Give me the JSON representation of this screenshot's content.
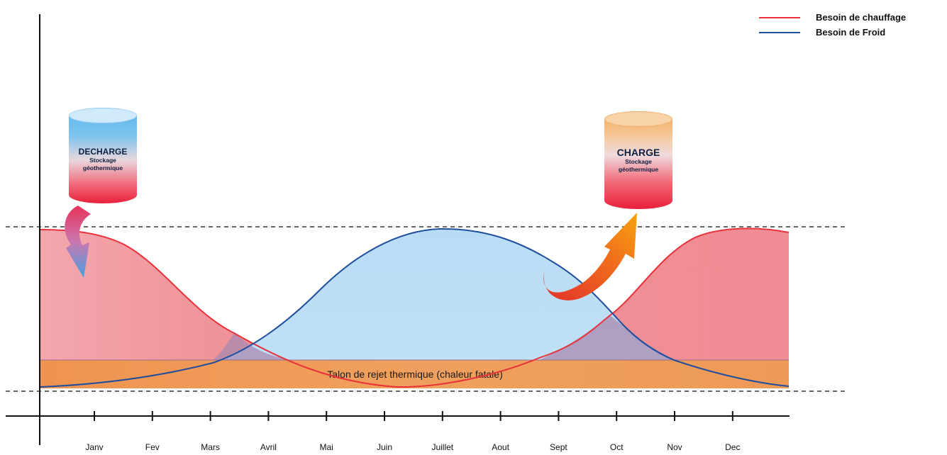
{
  "chart_data": {
    "type": "area",
    "x": [
      "Janv",
      "Fev",
      "Mars",
      "Avril",
      "Mai",
      "Juin",
      "Juillet",
      "Aout",
      "Sept",
      "Oct",
      "Nov",
      "Dec"
    ],
    "series": [
      {
        "name": "Besoin de chauffage",
        "color": "#e8313a",
        "fill": "#ee8a91"
      },
      {
        "name": "Besoin de Froid",
        "color": "#1f4e9e",
        "fill": "#bcdff6"
      }
    ],
    "band_label": "Talon de rejet thermique (chaleur fatale)",
    "band_color": "#ee9a57",
    "storage_discharge": {
      "title": "DECHARGE",
      "subtitle_1": "Stockage",
      "subtitle_2": "géothermique"
    },
    "storage_charge": {
      "title": "CHARGE",
      "subtitle_1": "Stockage",
      "subtitle_2": "géothermique"
    },
    "grid": false,
    "legend": "top-right"
  }
}
